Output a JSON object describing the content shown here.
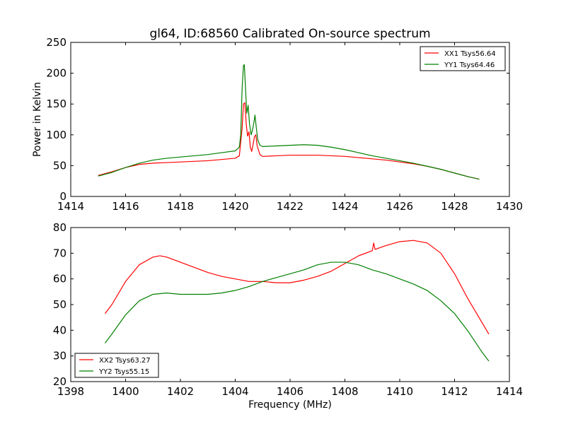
{
  "figure": {
    "title": "gl64, ID:68560 Calibrated On-source spectrum",
    "ylabel": "Power in Kelvin",
    "xlabel": "Frequency (MHz)"
  },
  "colors": {
    "xx": "#ff0000",
    "yy": "#008000",
    "axis": "#000000",
    "background": "#ffffff"
  },
  "chart_data": [
    {
      "type": "line",
      "title": "gl64, ID:68560 Calibrated On-source spectrum",
      "ylabel": "Power in Kelvin",
      "xlabel": "",
      "xlim": [
        1414,
        1430
      ],
      "ylim": [
        0,
        250
      ],
      "xticks": [
        1414,
        1416,
        1418,
        1420,
        1422,
        1424,
        1426,
        1428,
        1430
      ],
      "yticks": [
        0,
        50,
        100,
        150,
        200,
        250
      ],
      "grid": false,
      "legend_position": "top-right",
      "series": [
        {
          "name": "XX1 Tsys56.64",
          "color": "#ff0000",
          "points": [
            [
              1415.0,
              34
            ],
            [
              1415.5,
              40
            ],
            [
              1416.0,
              47
            ],
            [
              1416.5,
              52
            ],
            [
              1417.0,
              54
            ],
            [
              1417.5,
              55
            ],
            [
              1418.0,
              56
            ],
            [
              1418.5,
              57
            ],
            [
              1419.0,
              58
            ],
            [
              1419.5,
              60
            ],
            [
              1420.0,
              62
            ],
            [
              1420.15,
              66
            ],
            [
              1420.25,
              110
            ],
            [
              1420.3,
              150
            ],
            [
              1420.35,
              152
            ],
            [
              1420.4,
              118
            ],
            [
              1420.45,
              98
            ],
            [
              1420.5,
              105
            ],
            [
              1420.55,
              80
            ],
            [
              1420.6,
              73
            ],
            [
              1420.65,
              84
            ],
            [
              1420.7,
              97
            ],
            [
              1420.75,
              100
            ],
            [
              1420.8,
              82
            ],
            [
              1420.9,
              68
            ],
            [
              1421.0,
              65
            ],
            [
              1421.5,
              66
            ],
            [
              1422.0,
              67
            ],
            [
              1422.5,
              67
            ],
            [
              1423.0,
              67
            ],
            [
              1423.5,
              66
            ],
            [
              1424.0,
              65
            ],
            [
              1424.5,
              63
            ],
            [
              1425.0,
              61
            ],
            [
              1425.5,
              59
            ],
            [
              1426.0,
              56
            ],
            [
              1426.5,
              53
            ],
            [
              1427.0,
              49
            ],
            [
              1427.5,
              44
            ],
            [
              1428.0,
              38
            ],
            [
              1428.5,
              32
            ],
            [
              1428.9,
              28
            ]
          ]
        },
        {
          "name": "YY1 Tsys64.46",
          "color": "#008000",
          "points": [
            [
              1415.0,
              33
            ],
            [
              1415.5,
              39
            ],
            [
              1416.0,
              47
            ],
            [
              1416.5,
              54
            ],
            [
              1417.0,
              59
            ],
            [
              1417.5,
              62
            ],
            [
              1418.0,
              64
            ],
            [
              1418.5,
              66
            ],
            [
              1419.0,
              68
            ],
            [
              1419.5,
              71
            ],
            [
              1420.0,
              74
            ],
            [
              1420.15,
              80
            ],
            [
              1420.2,
              100
            ],
            [
              1420.25,
              175
            ],
            [
              1420.3,
              212
            ],
            [
              1420.33,
              214
            ],
            [
              1420.37,
              180
            ],
            [
              1420.42,
              135
            ],
            [
              1420.47,
              148
            ],
            [
              1420.52,
              118
            ],
            [
              1420.58,
              100
            ],
            [
              1420.63,
              108
            ],
            [
              1420.68,
              120
            ],
            [
              1420.72,
              132
            ],
            [
              1420.76,
              115
            ],
            [
              1420.82,
              92
            ],
            [
              1420.9,
              83
            ],
            [
              1421.0,
              81
            ],
            [
              1421.5,
              82
            ],
            [
              1422.0,
              83
            ],
            [
              1422.5,
              84
            ],
            [
              1423.0,
              83
            ],
            [
              1423.5,
              80
            ],
            [
              1424.0,
              76
            ],
            [
              1424.5,
              71
            ],
            [
              1425.0,
              66
            ],
            [
              1425.5,
              62
            ],
            [
              1426.0,
              58
            ],
            [
              1426.5,
              54
            ],
            [
              1427.0,
              49
            ],
            [
              1427.5,
              44
            ],
            [
              1428.0,
              38
            ],
            [
              1428.5,
              32
            ],
            [
              1428.9,
              28
            ]
          ]
        }
      ]
    },
    {
      "type": "line",
      "title": "",
      "ylabel": "",
      "xlabel": "Frequency (MHz)",
      "xlim": [
        1398,
        1414
      ],
      "ylim": [
        20,
        80
      ],
      "xticks": [
        1398,
        1400,
        1402,
        1404,
        1406,
        1408,
        1410,
        1412,
        1414
      ],
      "yticks": [
        20,
        30,
        40,
        50,
        60,
        70,
        80
      ],
      "grid": false,
      "legend_position": "bottom-left",
      "series": [
        {
          "name": "XX2 Tsys63.27",
          "color": "#ff0000",
          "points": [
            [
              1399.25,
              46.5
            ],
            [
              1399.5,
              50
            ],
            [
              1400.0,
              59
            ],
            [
              1400.5,
              65.5
            ],
            [
              1401.0,
              68.5
            ],
            [
              1401.25,
              69
            ],
            [
              1401.5,
              68.5
            ],
            [
              1402.0,
              66.5
            ],
            [
              1402.5,
              64.5
            ],
            [
              1403.0,
              62.5
            ],
            [
              1403.5,
              61
            ],
            [
              1404.0,
              60
            ],
            [
              1404.5,
              59
            ],
            [
              1405.0,
              59
            ],
            [
              1405.5,
              58.5
            ],
            [
              1406.0,
              58.5
            ],
            [
              1406.5,
              59.5
            ],
            [
              1407.0,
              61
            ],
            [
              1407.5,
              63
            ],
            [
              1408.0,
              66
            ],
            [
              1408.5,
              69
            ],
            [
              1409.0,
              71
            ],
            [
              1409.05,
              74
            ],
            [
              1409.1,
              71.5
            ],
            [
              1409.5,
              73
            ],
            [
              1410.0,
              74.5
            ],
            [
              1410.5,
              75
            ],
            [
              1411.0,
              74
            ],
            [
              1411.5,
              70
            ],
            [
              1412.0,
              62
            ],
            [
              1412.5,
              52
            ],
            [
              1413.0,
              43
            ],
            [
              1413.25,
              38.5
            ]
          ]
        },
        {
          "name": "YY2 Tsys55.15",
          "color": "#008000",
          "points": [
            [
              1399.25,
              35
            ],
            [
              1399.5,
              38.5
            ],
            [
              1400.0,
              46
            ],
            [
              1400.5,
              51.5
            ],
            [
              1401.0,
              54
            ],
            [
              1401.5,
              54.5
            ],
            [
              1402.0,
              54
            ],
            [
              1402.5,
              54
            ],
            [
              1403.0,
              54
            ],
            [
              1403.5,
              54.5
            ],
            [
              1404.0,
              55.5
            ],
            [
              1404.5,
              57
            ],
            [
              1405.0,
              59
            ],
            [
              1405.5,
              60.5
            ],
            [
              1406.0,
              62
            ],
            [
              1406.5,
              63.5
            ],
            [
              1407.0,
              65.5
            ],
            [
              1407.5,
              66.5
            ],
            [
              1408.0,
              66.5
            ],
            [
              1408.5,
              65.5
            ],
            [
              1409.0,
              63.5
            ],
            [
              1409.5,
              62
            ],
            [
              1410.0,
              60
            ],
            [
              1410.5,
              58
            ],
            [
              1411.0,
              55.5
            ],
            [
              1411.5,
              51.5
            ],
            [
              1412.0,
              46.5
            ],
            [
              1412.5,
              39.5
            ],
            [
              1413.0,
              31.5
            ],
            [
              1413.25,
              28
            ]
          ]
        }
      ]
    }
  ]
}
